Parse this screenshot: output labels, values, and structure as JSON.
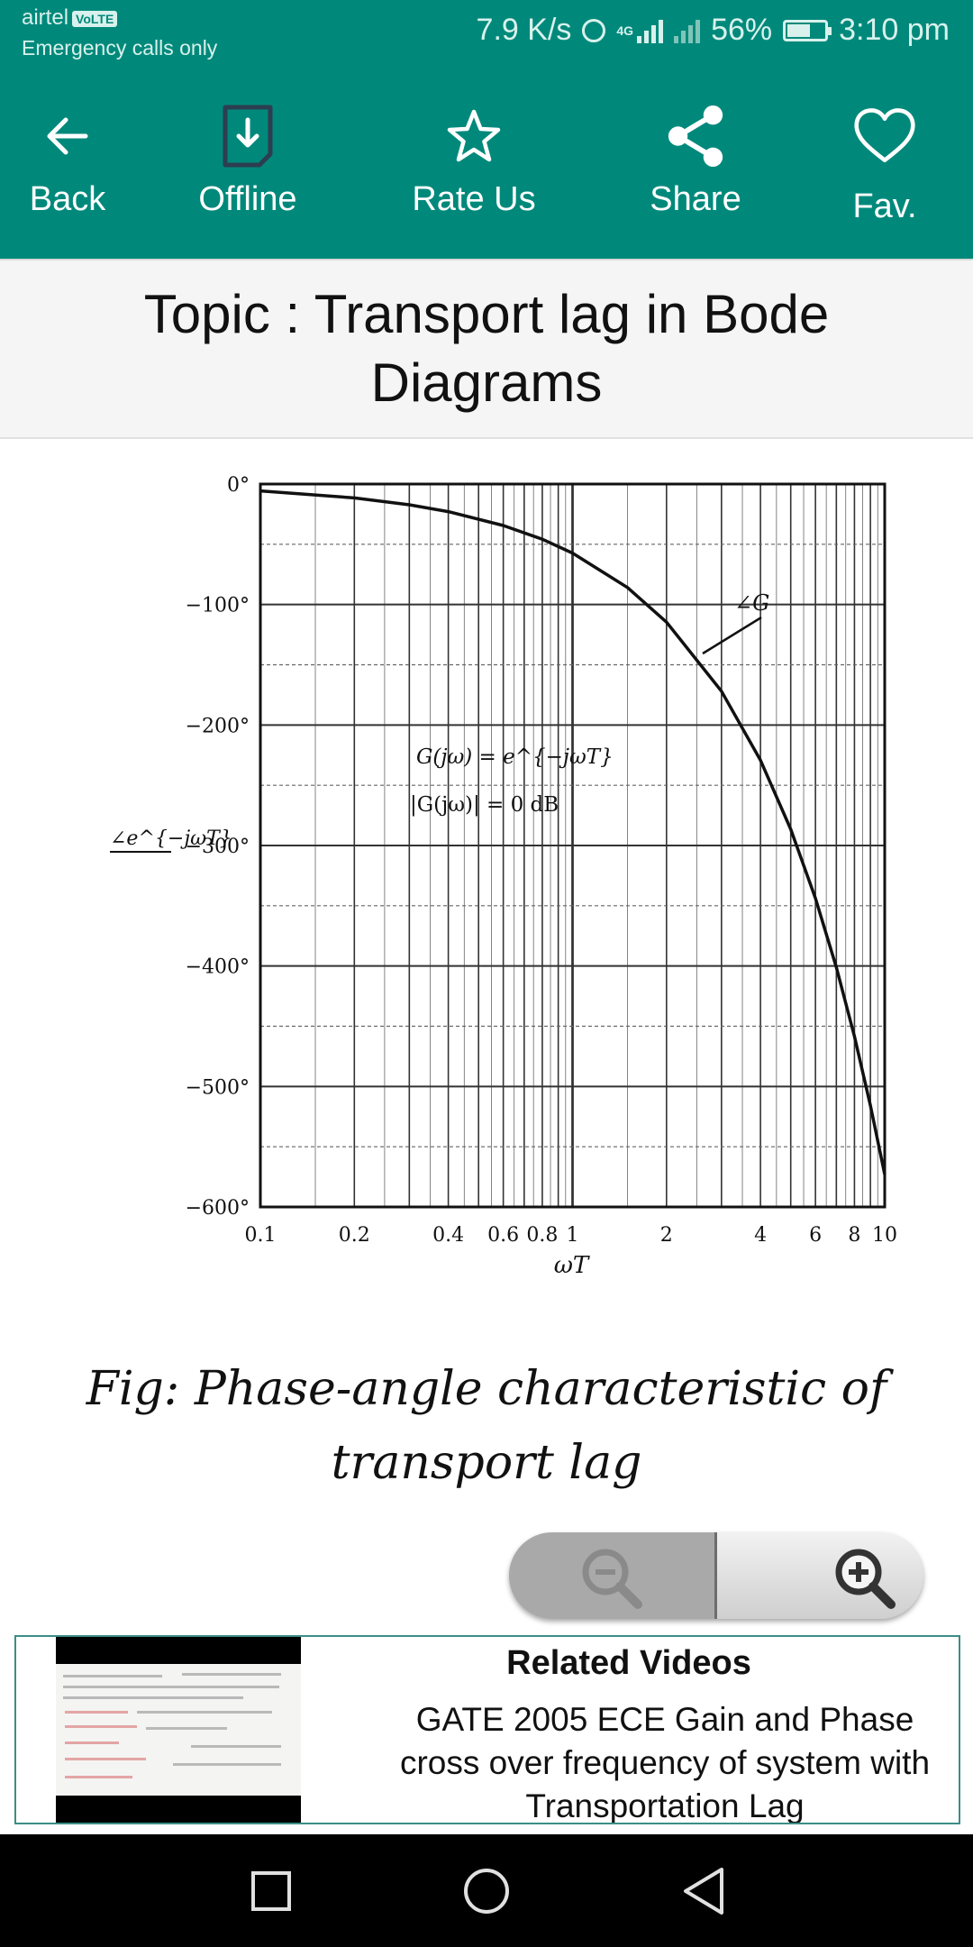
{
  "status_bar": {
    "carrier": "airtel",
    "volte": "VoLTE",
    "emergency": "Emergency calls only",
    "speed": "7.9 K/s",
    "network": "4G",
    "battery": "56%",
    "time": "3:10 pm"
  },
  "toolbar": {
    "items": [
      {
        "label": "Back",
        "icon": "arrow-left-icon"
      },
      {
        "label": "Offline",
        "icon": "download-file-icon"
      },
      {
        "label": "Rate Us",
        "icon": "star-icon"
      },
      {
        "label": "Share",
        "icon": "share-icon"
      },
      {
        "label": "Fav.",
        "icon": "heart-icon"
      }
    ],
    "color": "#00897b"
  },
  "topic": {
    "title": "Topic : Transport lag in Bode Diagrams"
  },
  "figure": {
    "caption": "Fig: Phase-angle characteristic of transport lag",
    "equation_1": "G(jω) = e^{−jωT}",
    "equation_2": "|G(jω)| = 0 dB",
    "curve_label": "∠G",
    "ylabel": "∠e^{−jωT}"
  },
  "chart_data": {
    "type": "line",
    "title": "",
    "xlabel": "ωT",
    "ylabel": "∠e^{−jωT}",
    "x_scale": "log",
    "xlim": [
      0.1,
      10
    ],
    "ylim": [
      -600,
      0
    ],
    "x_tick_labels": [
      "0.1",
      "0.2",
      "0.4",
      "0.6",
      "0.8",
      "1",
      "2",
      "4",
      "6",
      "8",
      "10"
    ],
    "y_tick_labels": [
      "0°",
      "−100°",
      "−200°",
      "−300°",
      "−400°",
      "−500°",
      "−600°"
    ],
    "grid": true,
    "series": [
      {
        "name": "∠G",
        "x": [
          0.1,
          0.2,
          0.3,
          0.4,
          0.6,
          0.8,
          1.0,
          1.5,
          2.0,
          3.0,
          4.0,
          5.0,
          6.0,
          7.0,
          8.0,
          9.0,
          10.0
        ],
        "y": [
          -5.7,
          -11.5,
          -17.2,
          -22.9,
          -34.4,
          -45.8,
          -57.3,
          -85.9,
          -114.6,
          -171.9,
          -229.2,
          -286.5,
          -343.8,
          -401.1,
          -458.4,
          -515.7,
          -573.0
        ]
      }
    ]
  },
  "zoom": {
    "out_icon": "zoom-out-icon",
    "in_icon": "zoom-in-icon"
  },
  "related": {
    "title": "Related Videos",
    "video_title": "GATE 2005 ECE Gain and Phase cross over frequency of system with Transportation Lag"
  },
  "nav": {
    "items": [
      "recents-icon",
      "home-icon",
      "back-icon"
    ]
  }
}
